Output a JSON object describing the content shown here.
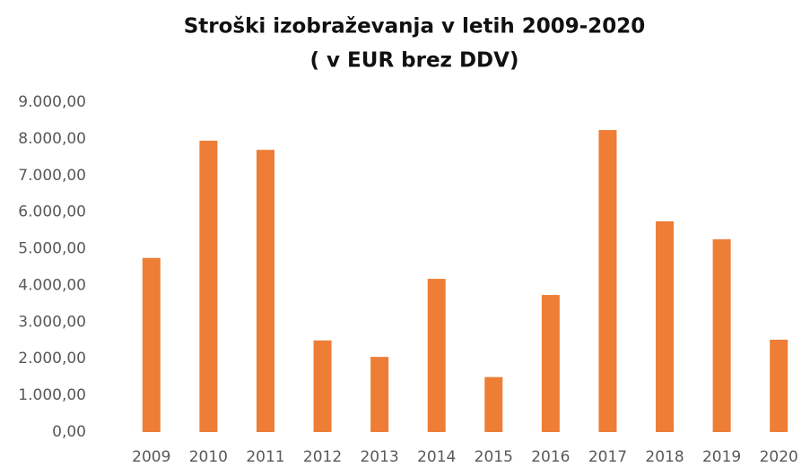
{
  "chart_data": {
    "type": "bar",
    "title": "Stroški izobraževanja v letih 2009-2020",
    "subtitle": "( v EUR brez DDV)",
    "categories": [
      "2009",
      "2010",
      "2011",
      "2012",
      "2013",
      "2014",
      "2015",
      "2016",
      "2017",
      "2018",
      "2019",
      "2020"
    ],
    "values": [
      4750,
      7950,
      7700,
      2500,
      2050,
      4180,
      1500,
      3740,
      8240,
      5750,
      5260,
      2520
    ],
    "color": "#ee7d35",
    "ylim": [
      0,
      9000
    ],
    "yticks": [
      {
        "value": 0,
        "label": "0,00"
      },
      {
        "value": 1000,
        "label": "1.000,00"
      },
      {
        "value": 2000,
        "label": "2.000,00"
      },
      {
        "value": 3000,
        "label": "3.000,00"
      },
      {
        "value": 4000,
        "label": "4.000,00"
      },
      {
        "value": 5000,
        "label": "5.000,00"
      },
      {
        "value": 6000,
        "label": "6.000,00"
      },
      {
        "value": 7000,
        "label": "7.000,00"
      },
      {
        "value": 8000,
        "label": "8.000,00"
      },
      {
        "value": 9000,
        "label": "9.000,00"
      }
    ],
    "grid": false
  }
}
